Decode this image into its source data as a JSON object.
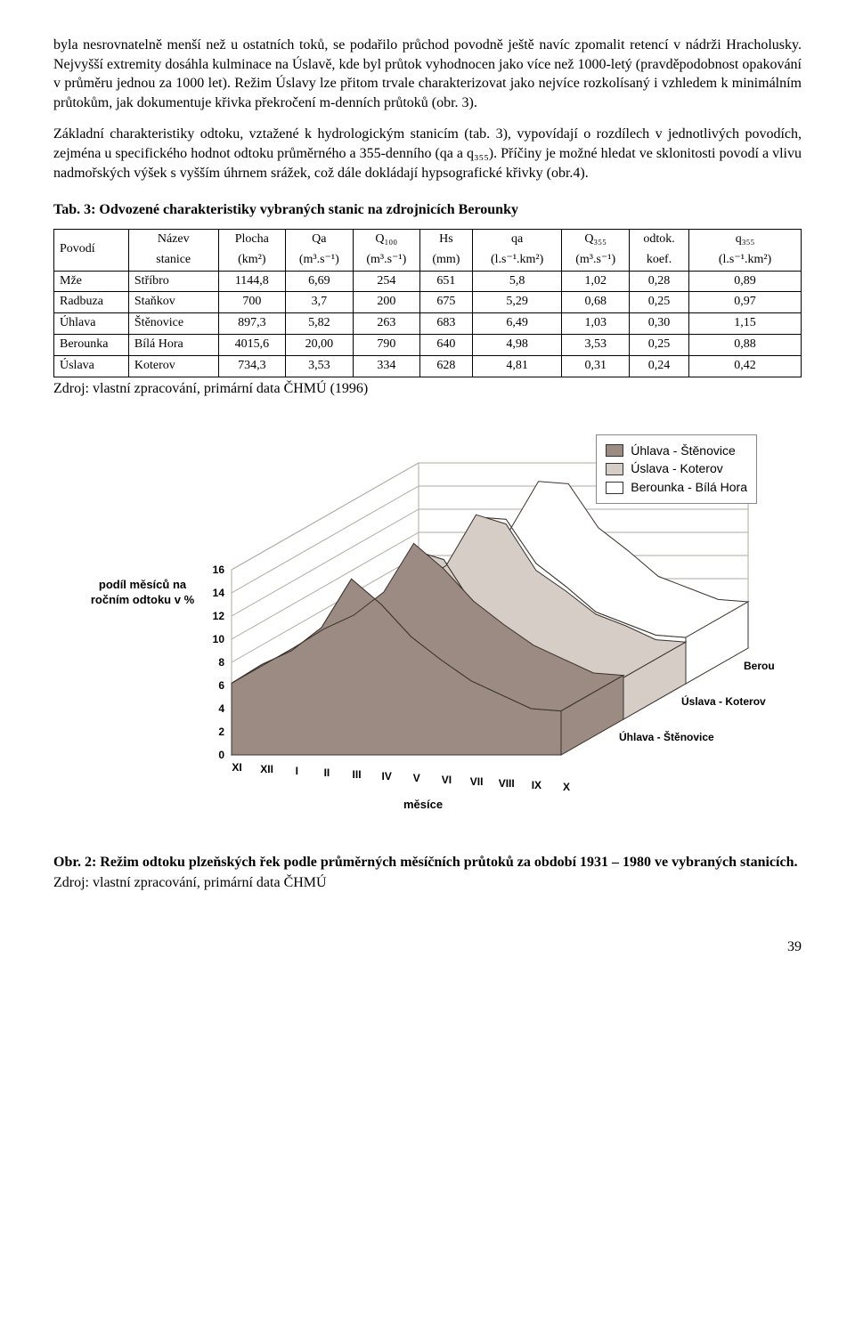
{
  "para1": "byla nesrovnatelně menší než u ostatních toků, se podařilo průchod povodně ještě navíc zpomalit retencí v nádrži Hracholusky. Nejvyšší extremity dosáhla kulminace na Úslavě, kde byl průtok vyhodnocen jako více než 1000-letý (pravděpodobnost opakování v průměru jednou za 1000 let). Režim Úslavy lze přitom trvale charakterizovat jako nejvíce rozkolísaný i vzhledem k minimálním průtokům, jak dokumentuje křivka překročení m-denních průtoků (obr. 3).",
  "para2": "Základní charakteristiky odtoku, vztažené k hydrologickým stanicím (tab. 3), vypovídají o rozdílech v jednotlivých povodích, zejména u specifického hodnot odtoku průměrného a 355-denního (qa a q₃₅₅). Příčiny je možné hledat ve sklonitosti povodí a vlivu nadmořských výšek s vyšším úhrnem srážek, což dále dokládají hypsografické křivky (obr.4).",
  "table_title": "Tab. 3: Odvozené charakteristiky vybraných stanic na zdrojnicích Berounky",
  "columns": [
    "Povodí",
    "Název stanice",
    "Plocha (km²)",
    "Qa (m³.s⁻¹)",
    "Q₁₀₀ (m³.s⁻¹)",
    "Hs (mm)",
    "qa (l.s⁻¹.km²)",
    "Q₃₅₅ (m³.s⁻¹)",
    "odtok. koef.",
    "q₃₅₅ (l.s⁻¹.km²)"
  ],
  "headers_main": [
    "Povodí",
    "Název",
    "Plocha",
    "Qa",
    "Q₁₀₀",
    "Hs",
    "qa",
    "Q₃₅₅",
    "odtok.",
    "q₃₅₅"
  ],
  "headers_sub": [
    "",
    "stanice",
    "(km²)",
    "(m³.s⁻¹)",
    "(m³.s⁻¹)",
    "(mm)",
    "(l.s⁻¹.km²)",
    "(m³.s⁻¹)",
    "koef.",
    "(l.s⁻¹.km²)"
  ],
  "rows": [
    [
      "Mže",
      "Stříbro",
      "1144,8",
      "6,69",
      "254",
      "651",
      "5,8",
      "1,02",
      "0,28",
      "0,89"
    ],
    [
      "Radbuza",
      "Staňkov",
      "700",
      "3,7",
      "200",
      "675",
      "5,29",
      "0,68",
      "0,25",
      "0,97"
    ],
    [
      "Úhlava",
      "Štěnovice",
      "897,3",
      "5,82",
      "263",
      "683",
      "6,49",
      "1,03",
      "0,30",
      "1,15"
    ],
    [
      "Berounka",
      "Bílá Hora",
      "4015,6",
      "20,00",
      "790",
      "640",
      "4,98",
      "3,53",
      "0,25",
      "0,88"
    ],
    [
      "Úslava",
      "Koterov",
      "734,3",
      "3,53",
      "334",
      "628",
      "4,81",
      "0,31",
      "0,24",
      "0,42"
    ]
  ],
  "table_source": "Zdroj: vlastní zpracování, primární data ČHMÚ (1996)",
  "chart": {
    "type": "area-3d",
    "ylabel": "podíl měsíců na ročním odtoku  v %",
    "xlabel": "měsíce",
    "y_ticks": [
      0,
      2,
      4,
      6,
      8,
      10,
      12,
      14,
      16
    ],
    "categories": [
      "XI",
      "XII",
      "I",
      "II",
      "III",
      "IV",
      "V",
      "VI",
      "VII",
      "VIII",
      "IX",
      "X"
    ],
    "series": [
      {
        "name": "Úhlava - Štěnovice",
        "color": "#9b8b82",
        "values": [
          6.2,
          7.8,
          9.0,
          11.0,
          15.2,
          13.0,
          10.2,
          8.2,
          6.4,
          5.2,
          4.0,
          3.8
        ]
      },
      {
        "name": "Úslava - Koterov",
        "color": "#d6cdc7",
        "values": [
          5.8,
          7.2,
          8.6,
          10.2,
          14.6,
          13.8,
          9.8,
          8.0,
          6.0,
          5.0,
          3.8,
          3.6
        ]
      },
      {
        "name": "Berounka - Bílá Hora",
        "color": "#ffffff",
        "values": [
          6.0,
          7.4,
          8.4,
          10.0,
          14.4,
          14.2,
          10.4,
          8.4,
          6.2,
          5.2,
          4.2,
          4.0
        ]
      }
    ],
    "background_color": "#ffffff",
    "grid_color": "#b0a8a2",
    "floor_color": "#efe9e5"
  },
  "legend_items": [
    {
      "label": "Úhlava - Štěnovice",
      "color": "#9b8b82"
    },
    {
      "label": "Úslava - Koterov",
      "color": "#d6cdc7"
    },
    {
      "label": "Berounka - Bílá Hora",
      "color": "#ffffff"
    }
  ],
  "series_right_labels": [
    "Berounka - Bílá Hora",
    "Úslava - Koterov",
    "Úhlava - Štěnovice"
  ],
  "fig_caption": "Obr. 2: Režim odtoku plzeňských řek podle průměrných měsíčních průtoků za období 1931 – 1980 ve vybraných stanicích.",
  "fig_source": "Zdroj: vlastní zpracování, primární data ČHMÚ",
  "page_number": "39"
}
